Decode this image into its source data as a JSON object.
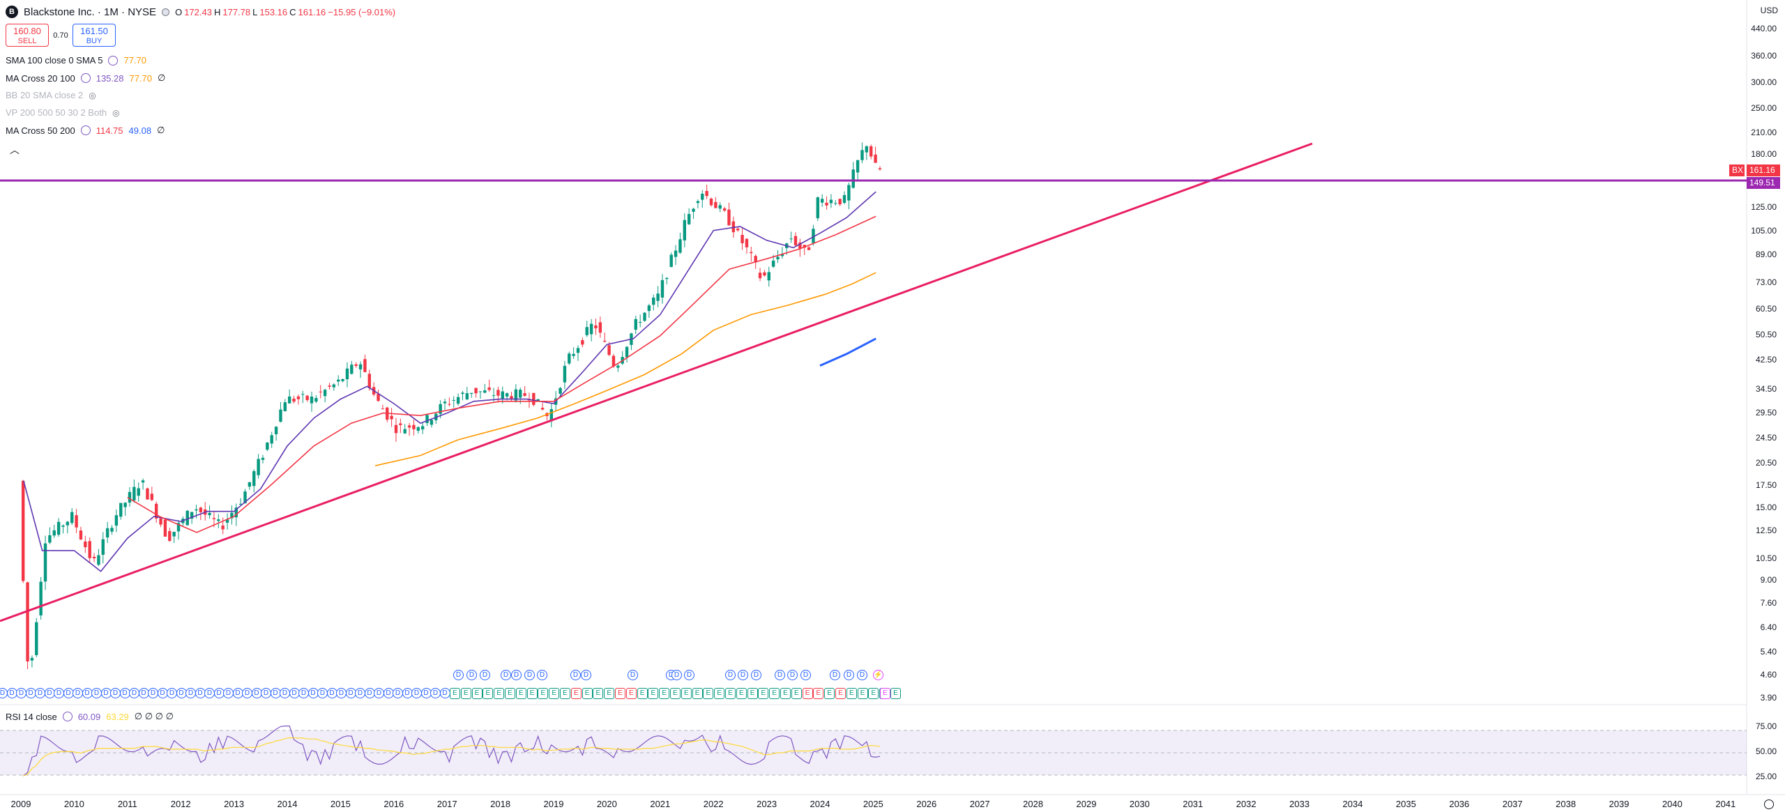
{
  "header": {
    "logo_letter": "B",
    "title": "Blackstone Inc. · 1M · NYSE",
    "ohlc": [
      {
        "k": "O",
        "v": "172.43"
      },
      {
        "k": "H",
        "v": "177.78"
      },
      {
        "k": "L",
        "v": "153.16"
      },
      {
        "k": "C",
        "v": "161.16"
      },
      {
        "k": "",
        "v": "−15.95 (−9.01%)"
      }
    ]
  },
  "trade": {
    "sell_price": "160.80",
    "sell_label": "SELL",
    "spread": "0.70",
    "buy_price": "161.50",
    "buy_label": "BUY"
  },
  "indicators": [
    {
      "name": "SMA 100 close 0 SMA 5",
      "v1": "77.70",
      "c1": "#ff9800",
      "v2": "",
      "c2": "",
      "tail": "",
      "dim": false
    },
    {
      "name": "MA Cross 20 100",
      "v1": "135.28",
      "c1": "#7e57c2",
      "v2": "77.70",
      "c2": "#ff9800",
      "tail": "∅",
      "dim": false
    },
    {
      "name": "BB 20 SMA close 2",
      "v1": "",
      "c1": "",
      "v2": "",
      "c2": "",
      "tail": "",
      "dim": true
    },
    {
      "name": "VP 200 500 50 30 2 Both",
      "v1": "",
      "c1": "",
      "v2": "",
      "c2": "",
      "tail": "",
      "dim": true
    },
    {
      "name": "MA Cross 50 200",
      "v1": "114.75",
      "c1": "#f23645",
      "v2": "49.08",
      "c2": "#2962ff",
      "tail": "∅",
      "dim": false
    }
  ],
  "currency": "USD",
  "price_axis": [
    "440.00",
    "360.00",
    "300.00",
    "250.00",
    "210.00",
    "180.00",
    "125.00",
    "105.00",
    "89.00",
    "73.00",
    "60.50",
    "50.50",
    "42.50",
    "34.50",
    "29.50",
    "24.50",
    "20.50",
    "17.50",
    "15.00",
    "12.50",
    "10.50",
    "9.00",
    "7.60",
    "6.40",
    "5.40",
    "4.60",
    "3.90"
  ],
  "badges": {
    "symbol": "BX",
    "last_price": "161.16",
    "line_price": "149.51"
  },
  "time_axis": [
    "2009",
    "2010",
    "2011",
    "2012",
    "2013",
    "2014",
    "2015",
    "2016",
    "2017",
    "2018",
    "2019",
    "2020",
    "2021",
    "2022",
    "2023",
    "2024",
    "2025",
    "2026",
    "2027",
    "2028",
    "2029",
    "2030",
    "2031",
    "2032",
    "2033",
    "2034",
    "2035",
    "2036",
    "2037",
    "2038",
    "2039",
    "2040",
    "2041"
  ],
  "rsi": {
    "title": "RSI 14 close",
    "v1": "60.09",
    "v2": "63.29",
    "tail": "∅ ∅ ∅ ∅",
    "levels": [
      "75.00",
      "50.00",
      "25.00"
    ]
  },
  "events": {
    "dividend_label": "D",
    "earnings_label": "E",
    "split_icon": "lightning-icon"
  },
  "colors": {
    "up": "#089981",
    "down": "#f23645",
    "hline": "#9c27b0",
    "trend": "#e91e63",
    "ma20": "#5e35b1",
    "ma50": "#f23645",
    "ma100": "#ff9800",
    "ma200": "#2962ff"
  }
}
